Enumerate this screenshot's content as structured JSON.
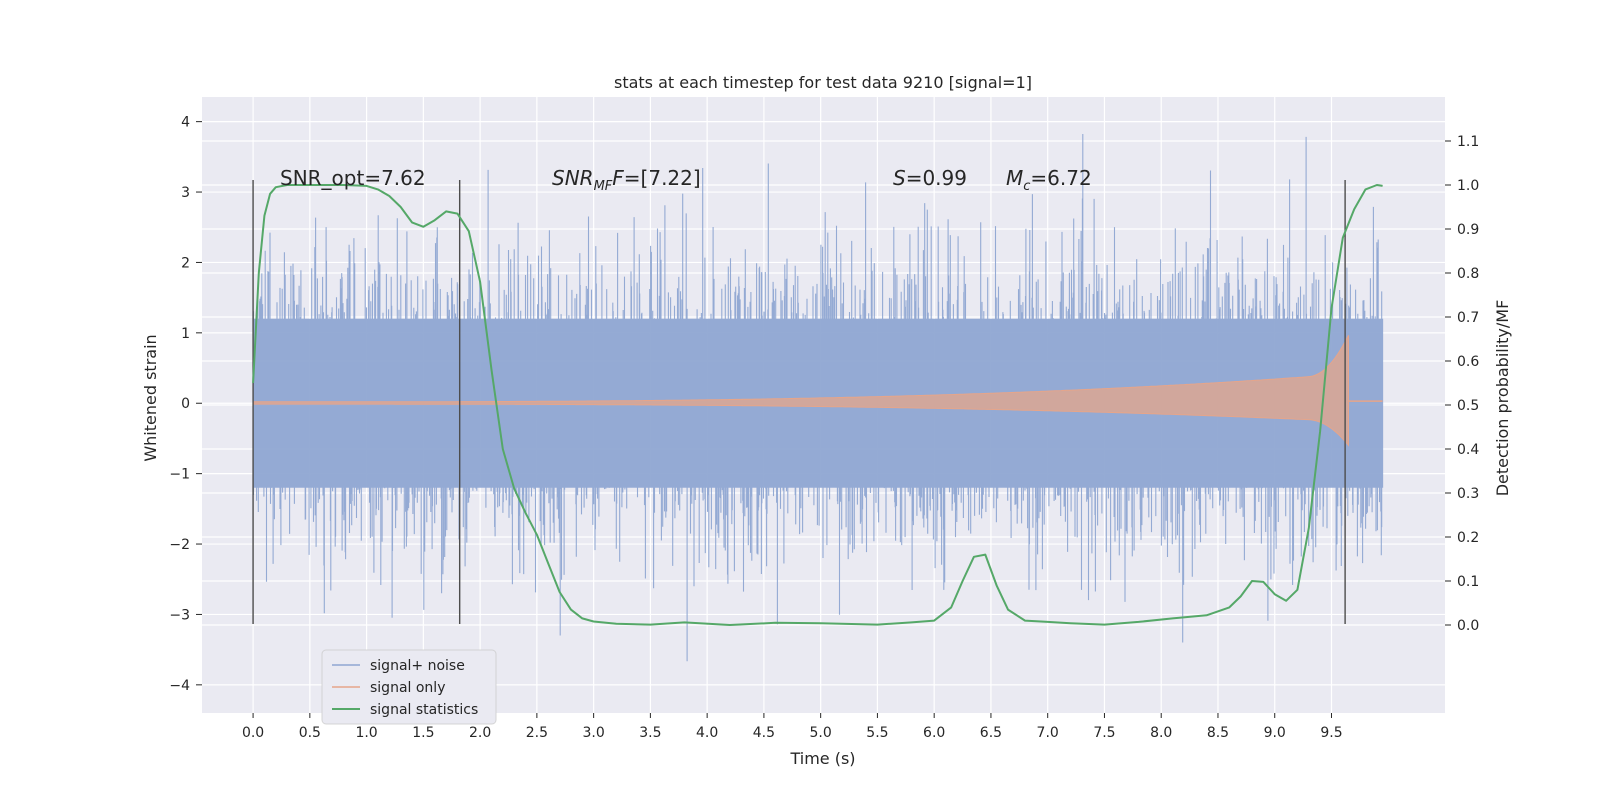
{
  "chart_data": {
    "type": "line",
    "title": "stats at each timestep for test data 9210 [signal=1]",
    "xlabel": "Time (s)",
    "ylabel_left": "Whitened strain",
    "ylabel_right": "Detection probability/MF",
    "xlim": [
      -0.45,
      10.5
    ],
    "ylim_left": [
      -4.4,
      4.35
    ],
    "ylim_right": [
      -0.2,
      1.2
    ],
    "x_ticks": [
      "0.0",
      "0.5",
      "1.0",
      "1.5",
      "2.0",
      "2.5",
      "3.0",
      "3.5",
      "4.0",
      "4.5",
      "5.0",
      "5.5",
      "6.0",
      "6.5",
      "7.0",
      "7.5",
      "8.0",
      "8.5",
      "9.0",
      "9.5"
    ],
    "y_ticks_left": [
      "−4",
      "−3",
      "−2",
      "−1",
      "0",
      "1",
      "2",
      "3",
      "4"
    ],
    "y_ticks_right": [
      "0.0",
      "0.1",
      "0.2",
      "0.3",
      "0.4",
      "0.5",
      "0.6",
      "0.7",
      "0.8",
      "0.9",
      "1.0",
      "1.1"
    ],
    "grid": true,
    "legend_position": "lower-left",
    "series": [
      {
        "name": "signal+ noise",
        "axis": "left",
        "color": "#8fa6d2",
        "description_range": "noise envelope roughly -2.2 to 2.2 with spikes to about ±4, from t=0 to t=9.95"
      },
      {
        "name": "signal only",
        "axis": "left",
        "color": "#e6a58a",
        "chirp_start": 0.0,
        "chirp_end": 9.65,
        "peak_amplitude": 1.05
      },
      {
        "name": "signal statistics",
        "axis": "right",
        "color": "#55a868",
        "x": [
          0.0,
          0.05,
          0.1,
          0.15,
          0.2,
          0.3,
          0.5,
          0.8,
          1.0,
          1.1,
          1.2,
          1.3,
          1.4,
          1.5,
          1.6,
          1.7,
          1.8,
          1.9,
          2.0,
          2.1,
          2.2,
          2.3,
          2.4,
          2.5,
          2.6,
          2.7,
          2.8,
          2.9,
          3.0,
          3.2,
          3.5,
          3.8,
          4.2,
          4.6,
          5.0,
          5.5,
          5.8,
          6.0,
          6.15,
          6.25,
          6.35,
          6.45,
          6.55,
          6.65,
          6.8,
          7.0,
          7.2,
          7.5,
          7.8,
          8.1,
          8.4,
          8.6,
          8.7,
          8.8,
          8.9,
          9.0,
          9.1,
          9.2,
          9.3,
          9.4,
          9.5,
          9.6,
          9.7,
          9.8,
          9.9,
          9.95
        ],
        "values": [
          0.55,
          0.8,
          0.93,
          0.98,
          0.995,
          1.0,
          1.0,
          1.0,
          0.998,
          0.99,
          0.975,
          0.95,
          0.915,
          0.905,
          0.92,
          0.94,
          0.935,
          0.895,
          0.78,
          0.58,
          0.4,
          0.31,
          0.255,
          0.205,
          0.14,
          0.075,
          0.035,
          0.015,
          0.008,
          0.003,
          0.001,
          0.006,
          0.0,
          0.005,
          0.004,
          0.001,
          0.006,
          0.01,
          0.04,
          0.1,
          0.155,
          0.16,
          0.09,
          0.035,
          0.01,
          0.007,
          0.004,
          0.001,
          0.007,
          0.015,
          0.022,
          0.04,
          0.065,
          0.1,
          0.098,
          0.07,
          0.055,
          0.08,
          0.22,
          0.44,
          0.72,
          0.88,
          0.945,
          0.99,
          1.0,
          0.998
        ]
      }
    ],
    "vertical_lines": [
      0.0,
      1.82,
      9.62
    ],
    "annotations": {
      "snr_opt": "SNR_opt=7.62",
      "snr_mf_main": "SNR",
      "snr_mf_sub": "MF",
      "snr_mf_rest": "=[7.22]",
      "s_var": "S",
      "s_rest": "=0.99",
      "mc_var": "M",
      "mc_sub": "c",
      "mc_rest": "=6.72"
    },
    "colors": {
      "plot_background": "#eaeaf2",
      "grid": "#ffffff",
      "vline": "#4d4d4d"
    }
  }
}
